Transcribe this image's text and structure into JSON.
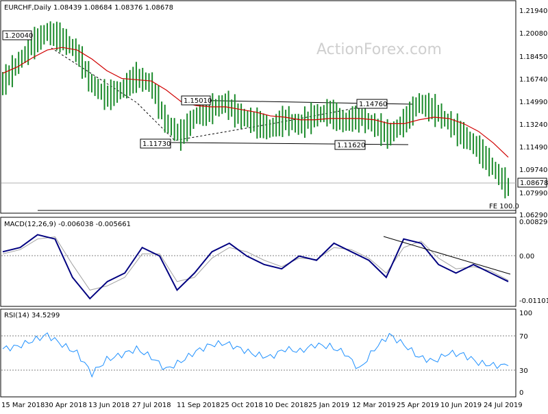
{
  "watermark": "ActionForex.com",
  "price_panel": {
    "header": "EURCHF,Daily  1.08439 1.08684 1.08376 1.08678",
    "y_ticks": [
      "1.21940",
      "1.20080",
      "1.18450",
      "1.16740",
      "1.14990",
      "1.13240",
      "1.11490",
      "1.09740",
      "1.07990",
      "1.06290"
    ],
    "last_price": "1.08678",
    "labels": [
      "1.20040",
      "1.15010",
      "1.14760",
      "1.11730",
      "1.11620"
    ],
    "fe_label": "FE 100.0",
    "colors": {
      "candles": "#1a8a2a",
      "ma": "#d00000",
      "lines": "#000000"
    }
  },
  "macd_panel": {
    "header": "MACD(12,26,9) -0.006038 -0.005661",
    "y_ticks": [
      "0.008292",
      "0.00",
      "-0.011015"
    ],
    "colors": {
      "macd": "#000080",
      "signal": "#a0a0a0"
    }
  },
  "rsi_panel": {
    "header": "RSI(14) 34.5299",
    "y_ticks": [
      "100",
      "70",
      "30",
      "0"
    ],
    "colors": {
      "rsi": "#1e90ff"
    }
  },
  "x_axis": {
    "ticks": [
      "15 Mar 2018",
      "30 Apr 2018",
      "13 Jun 2018",
      "27 Jul 2018",
      "11 Sep 2018",
      "25 Oct 2018",
      "10 Dec 2018",
      "25 Jan 2019",
      "12 Mar 2019",
      "25 Apr 2019",
      "10 Jun 2019",
      "24 Jul 2019"
    ]
  },
  "chart_data": [
    {
      "type": "line",
      "title": "EURCHF,Daily",
      "series": [
        {
          "name": "EURCHF close (approx.)",
          "values": [
            1.16,
            1.175,
            1.19,
            1.2,
            1.195,
            1.185,
            1.16,
            1.15,
            1.155,
            1.165,
            1.16,
            1.13,
            1.12,
            1.135,
            1.14,
            1.145,
            1.135,
            1.13,
            1.125,
            1.132,
            1.128,
            1.135,
            1.138,
            1.13,
            1.135,
            1.128,
            1.12,
            1.13,
            1.145,
            1.14,
            1.13,
            1.12,
            1.11,
            1.095,
            1.08
          ]
        },
        {
          "name": "Moving average (approx.)",
          "values": [
            1.168,
            1.173,
            1.18,
            1.186,
            1.188,
            1.186,
            1.179,
            1.17,
            1.164,
            1.163,
            1.162,
            1.155,
            1.146,
            1.143,
            1.142,
            1.142,
            1.14,
            1.138,
            1.135,
            1.134,
            1.132,
            1.132,
            1.133,
            1.133,
            1.133,
            1.132,
            1.129,
            1.129,
            1.132,
            1.134,
            1.133,
            1.129,
            1.123,
            1.114,
            1.103
          ]
        }
      ],
      "ylim": [
        1.0629,
        1.2194
      ]
    },
    {
      "type": "line",
      "title": "MACD(12,26,9)",
      "series": [
        {
          "name": "MACD (approx.)",
          "values": [
            0.001,
            0.002,
            0.005,
            0.004,
            -0.005,
            -0.01,
            -0.006,
            -0.004,
            0.002,
            0.0,
            -0.008,
            -0.004,
            0.001,
            0.003,
            0.0,
            -0.002,
            -0.003,
            0.0,
            -0.001,
            0.003,
            0.001,
            -0.001,
            -0.005,
            0.004,
            0.003,
            -0.002,
            -0.004,
            -0.002,
            -0.004,
            -0.006
          ]
        },
        {
          "name": "Signal (approx.)",
          "values": [
            0.0005,
            0.0015,
            0.004,
            0.0045,
            -0.002,
            -0.008,
            -0.007,
            -0.005,
            0.0005,
            0.0005,
            -0.006,
            -0.005,
            -0.0005,
            0.002,
            0.001,
            -0.001,
            -0.0025,
            -0.0005,
            -0.0008,
            0.002,
            0.0015,
            -0.0005,
            -0.004,
            0.002,
            0.0035,
            -0.0005,
            -0.003,
            -0.0025,
            -0.0035,
            -0.0057
          ]
        }
      ],
      "ylim": [
        -0.011015,
        0.008292
      ]
    },
    {
      "type": "line",
      "title": "RSI(14)",
      "series": [
        {
          "name": "RSI (approx.)",
          "values": [
            55,
            58,
            65,
            72,
            60,
            50,
            25,
            42,
            48,
            55,
            45,
            30,
            40,
            52,
            60,
            62,
            55,
            48,
            45,
            55,
            52,
            60,
            58,
            50,
            30,
            55,
            72,
            60,
            45,
            40,
            50,
            48,
            38,
            35,
            34.5
          ]
        }
      ],
      "ylim": [
        0,
        100
      ]
    }
  ]
}
